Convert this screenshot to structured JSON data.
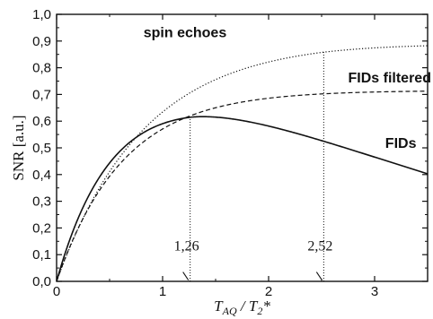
{
  "chart_data": {
    "type": "line",
    "xlabel": "T_AQ / T2*",
    "xlabel_parts": {
      "main1": "T",
      "sub1": "AQ",
      "sep": " / ",
      "main2": "T",
      "sub2": "2",
      "star": "*"
    },
    "ylabel": "SNR [a.u.]",
    "xlim": [
      0,
      3.5
    ],
    "ylim": [
      0,
      1.0
    ],
    "x_ticks": [
      0,
      1,
      2,
      3
    ],
    "x_tick_labels": [
      "0",
      "1",
      "2",
      "3"
    ],
    "y_ticks": [
      0,
      0.1,
      0.2,
      0.3,
      0.4,
      0.5,
      0.6,
      0.7,
      0.8,
      0.9,
      1.0
    ],
    "y_tick_labels": [
      "0,0",
      "0,1",
      "0,2",
      "0,3",
      "0,4",
      "0,5",
      "0,6",
      "0,7",
      "0,8",
      "0,9",
      "1,0"
    ],
    "series": [
      {
        "name": "spin echoes",
        "style": "dotted",
        "formula": "echo"
      },
      {
        "name": "FIDs filtered",
        "style": "dashed",
        "formula": "filtered"
      },
      {
        "name": "FIDs",
        "style": "solid",
        "formula": "fid"
      }
    ],
    "annotations": [
      {
        "text": "1,26",
        "x": 1.26
      },
      {
        "text": "2,52",
        "x": 2.52
      }
    ],
    "grid": false,
    "legend": "inline labels"
  }
}
